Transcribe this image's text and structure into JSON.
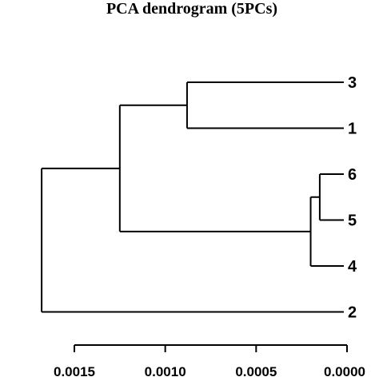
{
  "chart_data": {
    "type": "dendrogram",
    "title": "PCA dendrogram (5PCs)",
    "orientation": "leaves-right",
    "xlim": [
      0.0017,
      0.0
    ],
    "xticks": [
      {
        "value": 0.0015,
        "label": "0.0015"
      },
      {
        "value": 0.001,
        "label": "0.0010"
      },
      {
        "value": 0.0005,
        "label": "0.0005"
      },
      {
        "value": 0.0,
        "label": "0.0000"
      }
    ],
    "leaves": [
      "3",
      "1",
      "6",
      "5",
      "4",
      "2"
    ],
    "merges": [
      {
        "id": "m1",
        "children": [
          "6",
          "5"
        ],
        "height": 0.00015
      },
      {
        "id": "m2",
        "children": [
          "m1",
          "4"
        ],
        "height": 0.0002
      },
      {
        "id": "m3",
        "children": [
          "3",
          "1"
        ],
        "height": 0.00088
      },
      {
        "id": "m4",
        "children": [
          "m3",
          "m2"
        ],
        "height": 0.00125
      },
      {
        "id": "m5",
        "children": [
          "m4",
          "2"
        ],
        "height": 0.00168
      }
    ]
  }
}
